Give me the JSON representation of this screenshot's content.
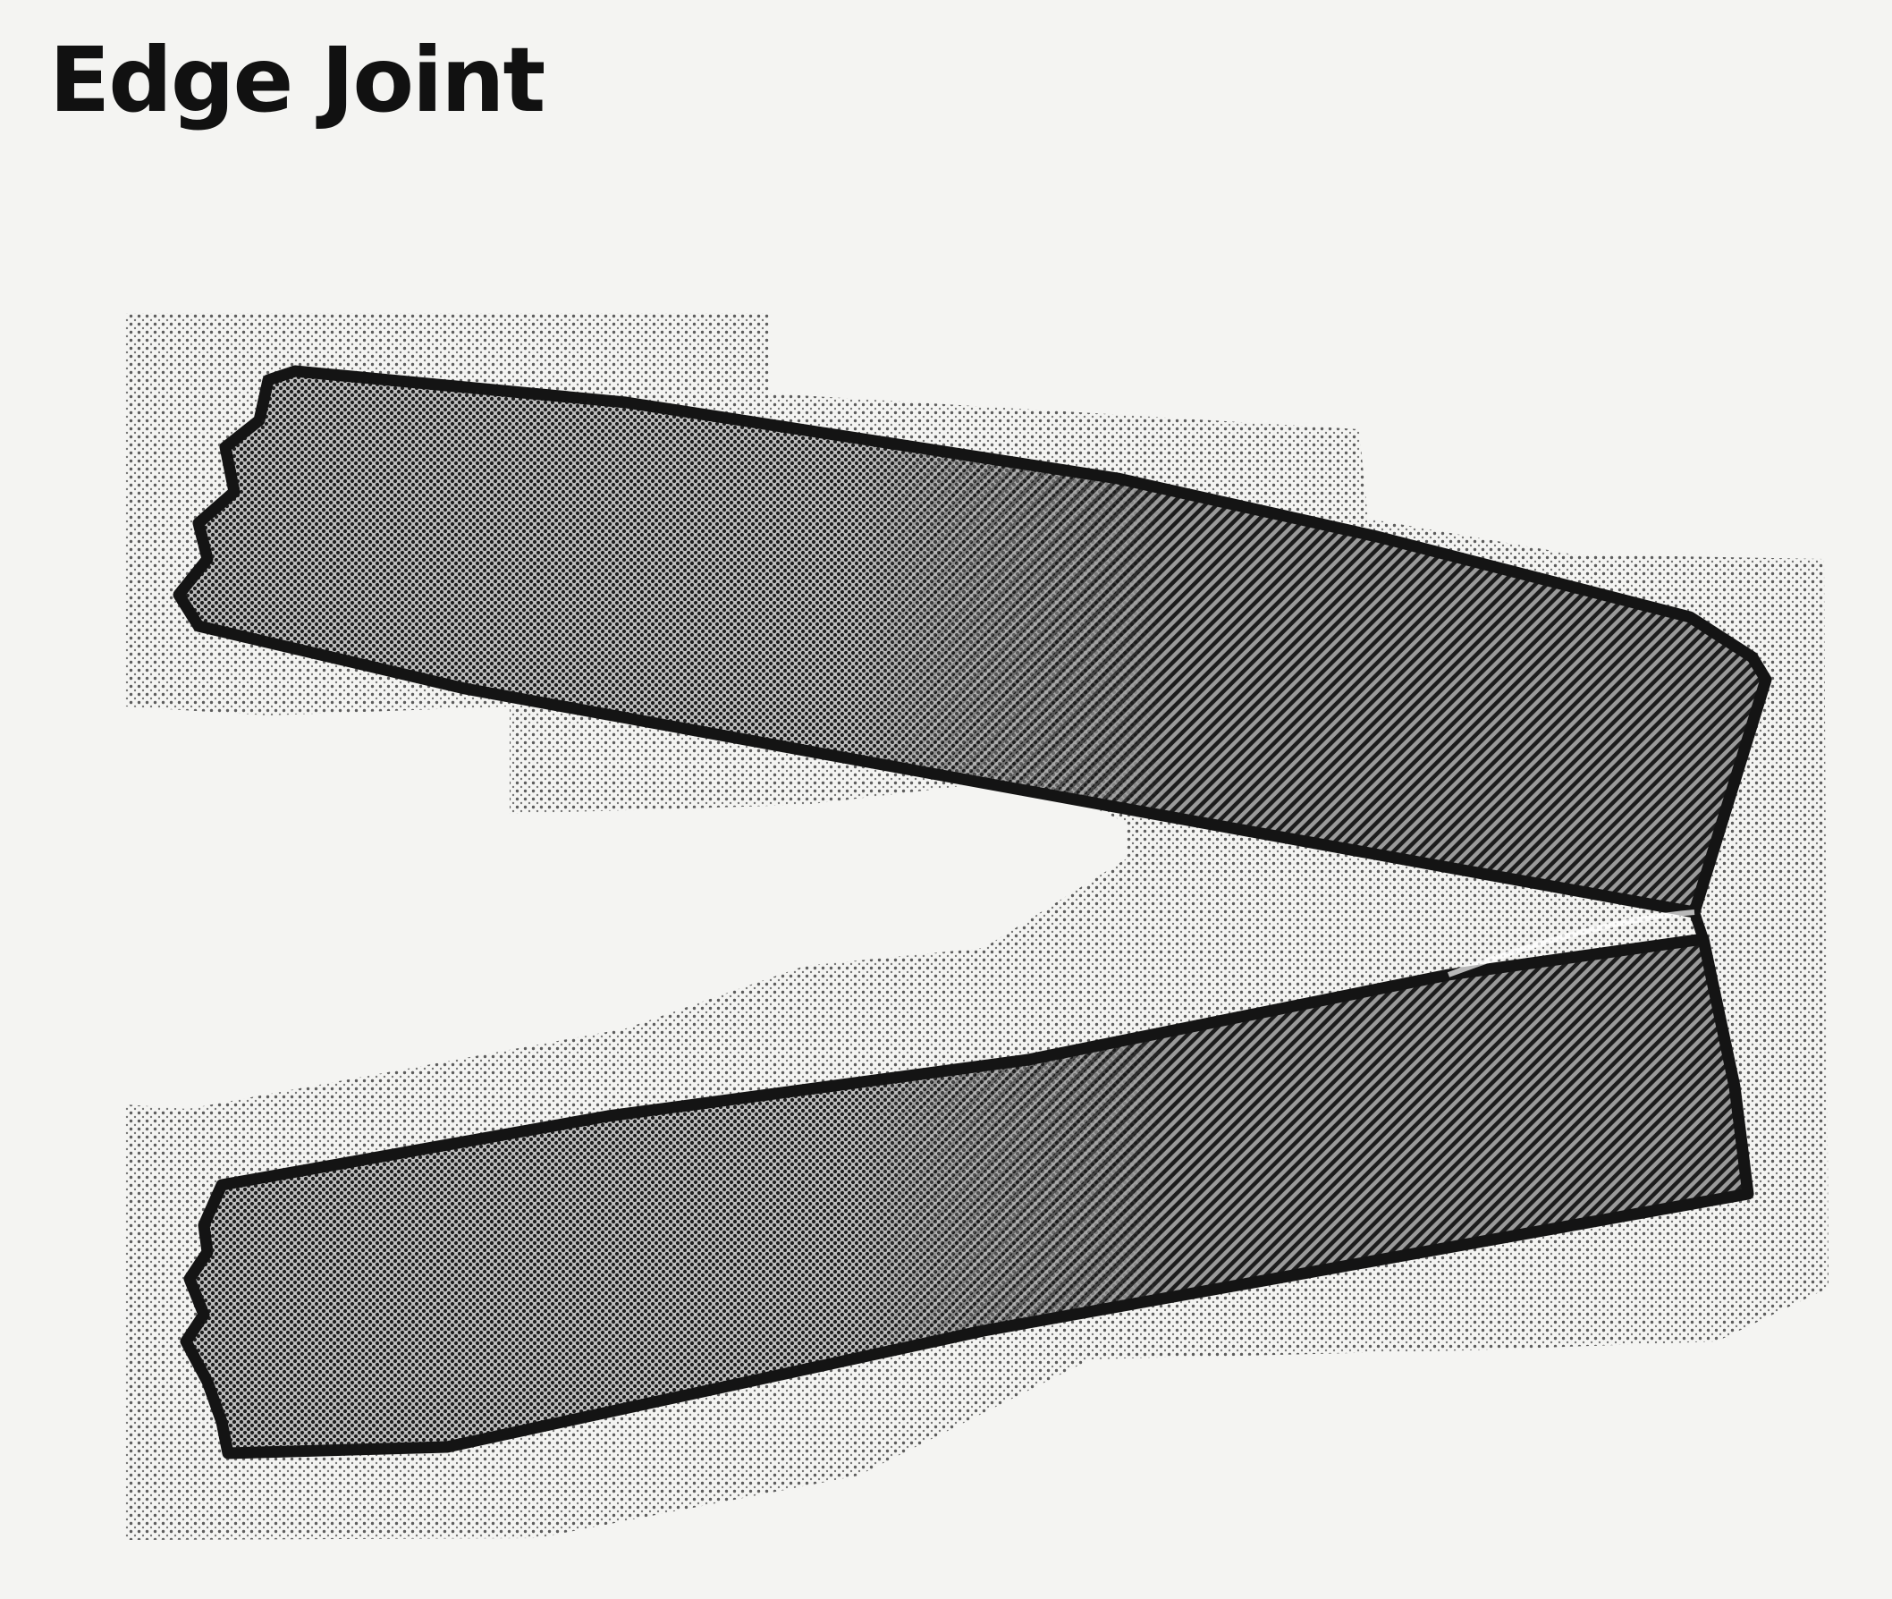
{
  "figure": {
    "title": "Edge Joint"
  },
  "colors": {
    "ink": "#111111",
    "paper": "#f4f4f2",
    "halftone_dark": "#2a2a2a",
    "halftone_light": "#7a7a7a"
  },
  "icons": {
    "upper_plate": "plate-icon",
    "lower_plate": "plate-icon"
  }
}
